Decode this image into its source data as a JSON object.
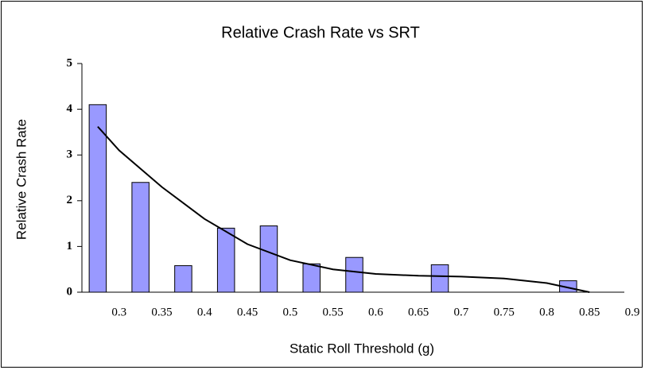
{
  "chart_data": {
    "type": "bar",
    "title": "Relative Crash Rate vs SRT",
    "x_label": "Static Roll Threshold (g)",
    "y_label": "Relative Crash Rate",
    "bars": {
      "color": "#9999ff",
      "x": [
        0.275,
        0.325,
        0.375,
        0.425,
        0.475,
        0.525,
        0.575,
        0.675,
        0.825
      ],
      "values": [
        4.1,
        2.4,
        0.58,
        1.4,
        1.45,
        0.62,
        0.76,
        0.6,
        0.25
      ]
    },
    "trendline": {
      "color": "#000000",
      "x": [
        0.275,
        0.3,
        0.35,
        0.4,
        0.45,
        0.5,
        0.55,
        0.6,
        0.65,
        0.7,
        0.75,
        0.8,
        0.85
      ],
      "values": [
        3.62,
        3.1,
        2.3,
        1.6,
        1.05,
        0.7,
        0.5,
        0.4,
        0.36,
        0.34,
        0.3,
        0.2,
        0.0
      ]
    },
    "xlim": [
      0.25,
      0.9
    ],
    "xticks": [
      0.3,
      0.35,
      0.4,
      0.45,
      0.5,
      0.55,
      0.6,
      0.65,
      0.7,
      0.75,
      0.8,
      0.85,
      0.9
    ],
    "ylim": [
      0,
      5
    ],
    "yticks": [
      0,
      1,
      2,
      3,
      4,
      5
    ],
    "grid": false
  }
}
